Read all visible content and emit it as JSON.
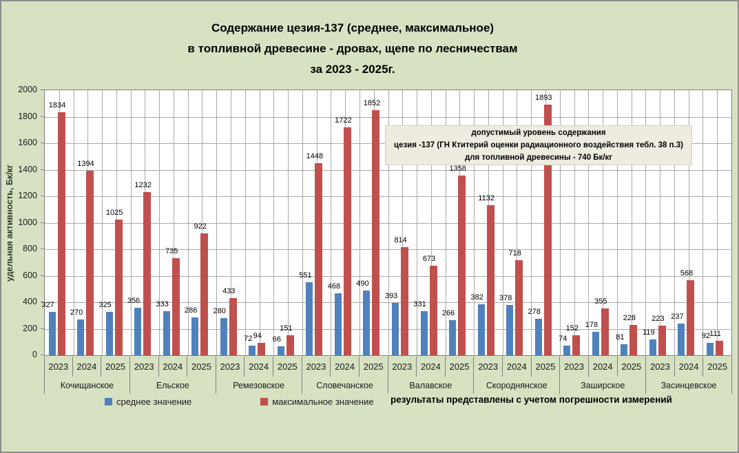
{
  "title": {
    "line1": "Содержание цезия-137 (среднее, максимальное)",
    "line2": "в топливной древесине - дровах, щепе по лесничествам",
    "line3": "за 2023 - 2025г."
  },
  "y_axis": {
    "title": "удельная активность,  Бк/кг",
    "min": 0,
    "max": 2000,
    "step": 200
  },
  "info_box": {
    "line1": "допустимый  уровень  содержания",
    "line2": "цезия -137  (ГН Ктитерий  оценки  радиационного   воздействия  тебл. 38 п.3)",
    "line3": "для топливной  древесины  - 740 Бк/кг"
  },
  "note": "результаты  представлены с учетом  погрешности измерений",
  "legend": [
    {
      "label": "среднее  значение",
      "color": "#4f81bd"
    },
    {
      "label": "максимальное значение",
      "color": "#c0504d"
    }
  ],
  "colors": {
    "background": "#d7e2c2",
    "plot_background": "#ffffff",
    "gridline": "#a8a8a8",
    "axis": "#7f7f7f",
    "avg_bar": "#4f81bd",
    "max_bar": "#c0504d",
    "info_box_bg": "#eeece1"
  },
  "chart_data": {
    "type": "bar",
    "title": "Содержание цезия-137 (среднее, максимальное) в топливной древесине - дровах, щепе по лесничествам за 2023 - 2025г.",
    "xlabel": "",
    "ylabel": "удельная активность,  Бк/кг",
    "ylim": [
      0,
      2000
    ],
    "ytick_step": 200,
    "grid": true,
    "legend_position": "bottom-left",
    "years": [
      "2023",
      "2024",
      "2025"
    ],
    "series_names": [
      "среднее  значение",
      "максимальное значение"
    ],
    "groups": [
      {
        "name": "Кочищанское",
        "avg": [
          327,
          270,
          325
        ],
        "max": [
          1834,
          1394,
          1025
        ]
      },
      {
        "name": "Ельское",
        "avg": [
          356,
          333,
          286
        ],
        "max": [
          1232,
          735,
          922
        ]
      },
      {
        "name": "Ремезовское",
        "avg": [
          280,
          72,
          66
        ],
        "max": [
          433,
          94,
          151
        ]
      },
      {
        "name": "Словечанское",
        "avg": [
          551,
          468,
          490
        ],
        "max": [
          1448,
          1722,
          1852
        ]
      },
      {
        "name": "Валавское",
        "avg": [
          393,
          331,
          266
        ],
        "max": [
          814,
          673,
          1358
        ]
      },
      {
        "name": "Скороднянское",
        "avg": [
          382,
          378,
          278
        ],
        "max": [
          1132,
          718,
          1893
        ]
      },
      {
        "name": "Заширское",
        "avg": [
          74,
          178,
          81
        ],
        "max": [
          152,
          355,
          228
        ]
      },
      {
        "name": "Засинцевское",
        "avg": [
          119,
          237,
          92
        ],
        "max": [
          223,
          568,
          111
        ]
      }
    ],
    "allowed_level_bq_kg": 740
  }
}
